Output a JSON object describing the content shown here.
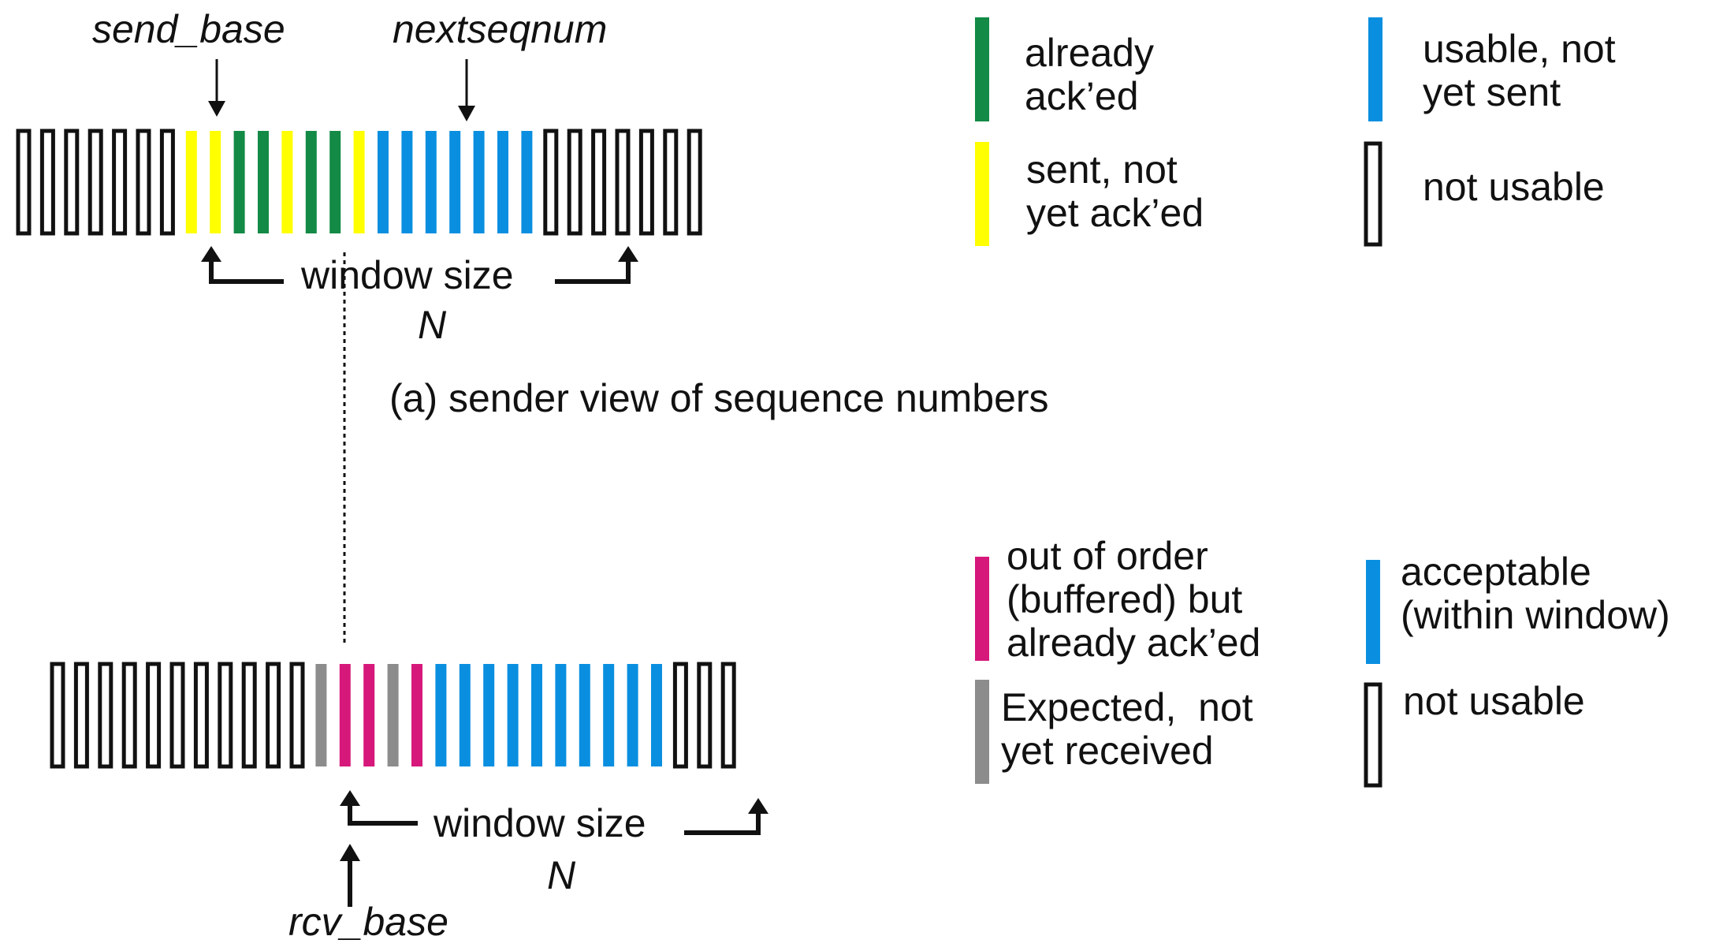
{
  "colors": {
    "green": "#138a45",
    "yellow": "#ffff00",
    "blue": "#0a8fe0",
    "magenta": "#d6187a",
    "gray": "#8c8c8c",
    "outline": "#111111"
  },
  "sender": {
    "pointer_labels": {
      "send_base": "send_base",
      "nextseqnum": "nextseqnum"
    },
    "cells": [
      "empty",
      "empty",
      "empty",
      "empty",
      "empty",
      "empty",
      "empty",
      "yellow",
      "yellow",
      "green",
      "green",
      "yellow",
      "green",
      "green",
      "yellow",
      "blue",
      "blue",
      "blue",
      "blue",
      "blue",
      "blue",
      "blue",
      "empty",
      "empty",
      "empty",
      "empty",
      "empty",
      "empty",
      "empty"
    ],
    "window_label": "window size",
    "window_var": "N",
    "caption": "(a) sender view of sequence numbers",
    "legend": [
      {
        "swatch": "green",
        "text": "already\nack’ed"
      },
      {
        "swatch": "blue",
        "text": "usable, not\nyet sent"
      },
      {
        "swatch": "yellow",
        "text": "sent, not\nyet ack’ed"
      },
      {
        "swatch": "empty",
        "text": "not usable"
      }
    ]
  },
  "receiver": {
    "pointer_labels": {
      "rcv_base": "rcv_base"
    },
    "cells": [
      "empty",
      "empty",
      "empty",
      "empty",
      "empty",
      "empty",
      "empty",
      "empty",
      "empty",
      "empty",
      "empty",
      "gray",
      "magenta",
      "magenta",
      "gray",
      "magenta",
      "blue",
      "blue",
      "blue",
      "blue",
      "blue",
      "blue",
      "blue",
      "blue",
      "blue",
      "blue",
      "empty",
      "empty",
      "empty"
    ],
    "window_label": "window size",
    "window_var": "N",
    "legend": [
      {
        "swatch": "magenta",
        "text": "out of order\n(buffered) but\nalready ack’ed"
      },
      {
        "swatch": "blue",
        "text": "acceptable\n(within window)"
      },
      {
        "swatch": "gray",
        "text": "Expected,  not\nyet received"
      },
      {
        "swatch": "empty",
        "text": "not usable"
      }
    ]
  }
}
